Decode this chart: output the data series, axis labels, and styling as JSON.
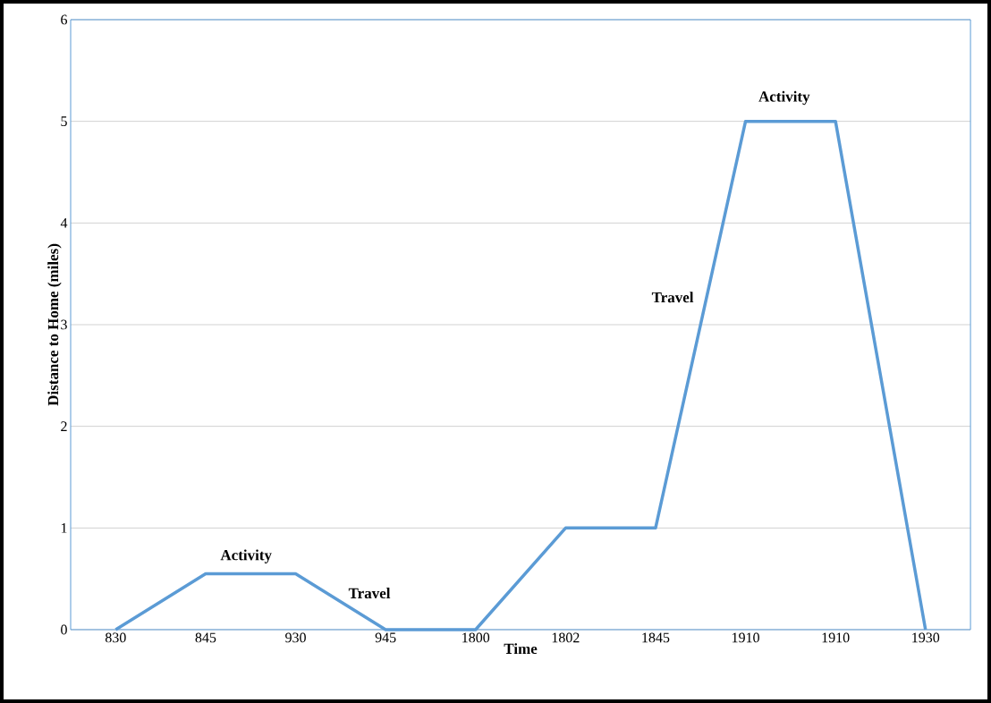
{
  "chart_data": {
    "type": "line",
    "xlabel": "Time",
    "ylabel": "Distance to Home (miles)",
    "categories": [
      "830",
      "845",
      "930",
      "945",
      "1800",
      "1802",
      "1845",
      "1910",
      "1910",
      "1930"
    ],
    "series": [
      {
        "color": "#5b9bd5",
        "values": [
          0,
          0.55,
          0.55,
          0,
          0,
          1,
          1,
          5,
          5,
          0
        ]
      }
    ],
    "ylim": [
      0,
      6
    ],
    "yticks": [
      0,
      1,
      2,
      3,
      4,
      5,
      6
    ],
    "grid": "y",
    "marker": "none",
    "line_style": "solid",
    "annotations": [
      "Activity",
      "Travel",
      "Travel",
      "Activity"
    ]
  }
}
